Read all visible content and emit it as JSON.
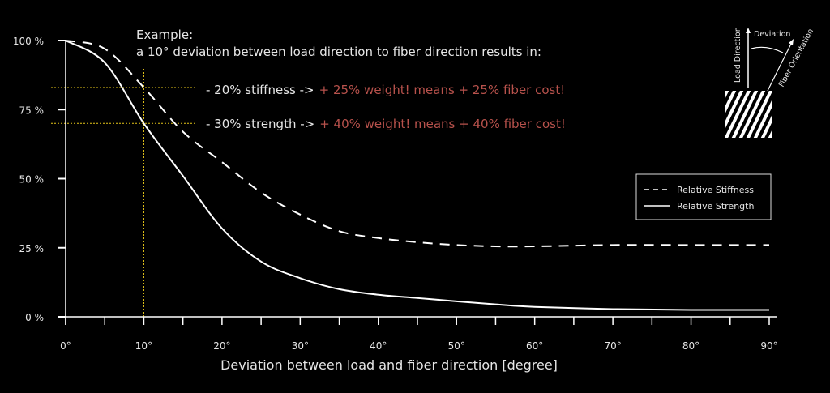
{
  "colors": {
    "bg": "#000000",
    "line": "#ffffff",
    "guide": "#e6c619",
    "highlight": "#b8524c"
  },
  "chart_data": {
    "type": "line",
    "xlabel": "Deviation between load and fiber direction [degree]",
    "ylabel": "",
    "xlim": [
      0,
      90
    ],
    "ylim": [
      0,
      100
    ],
    "x_ticks": [
      0,
      10,
      20,
      30,
      40,
      50,
      60,
      70,
      80,
      90
    ],
    "x_tick_labels": [
      "0°",
      "10°",
      "20°",
      "30°",
      "40°",
      "50°",
      "60°",
      "70°",
      "80°",
      "90°"
    ],
    "y_ticks": [
      0,
      25,
      50,
      75,
      100
    ],
    "y_tick_labels": [
      "0 %",
      "25 %",
      "50 %",
      "75 %",
      "100 %"
    ],
    "legend_position": "right",
    "x": [
      0,
      5,
      10,
      15,
      20,
      25,
      30,
      35,
      40,
      45,
      50,
      55,
      60,
      70,
      80,
      90
    ],
    "series": [
      {
        "name": "Relative Stiffness",
        "style": "dashed",
        "values": [
          100,
          97,
          83,
          67,
          56,
          45,
          37,
          31,
          28.5,
          27,
          26,
          25.5,
          25.5,
          26,
          26,
          26
        ]
      },
      {
        "name": "Relative Strength",
        "style": "solid",
        "values": [
          100,
          92,
          70,
          51,
          32,
          20,
          14,
          10,
          8,
          6.8,
          5.6,
          4.5,
          3.6,
          2.8,
          2.5,
          2.5
        ]
      }
    ],
    "guides": {
      "x": 10,
      "y": [
        83,
        70
      ]
    },
    "annotation": {
      "title": "Example:",
      "line1": "a 10° deviation between load direction to fiber direction results in:",
      "stiffness_prefix": "- 20% stiffness ->",
      "stiffness_result": "+ 25% weight!  means + 25% fiber cost!",
      "strength_prefix": "- 30% strength ->",
      "strength_result": "+ 40% weight! means + 40% fiber cost!"
    }
  },
  "diagram": {
    "load": "Load Direction",
    "deviation": "Deviation",
    "fiber": "Fiber Orientation"
  }
}
